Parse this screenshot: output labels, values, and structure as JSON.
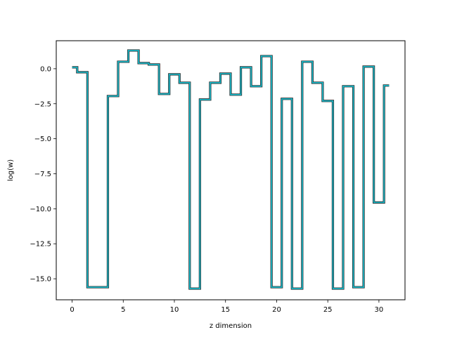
{
  "chart_data": {
    "type": "line",
    "step": "mid",
    "title": "",
    "xlabel": "z dimension",
    "ylabel": "log(w)",
    "xlim": [
      -1.55,
      32.55
    ],
    "ylim": [
      -16.5,
      2.0
    ],
    "xticks": [
      0,
      5,
      10,
      15,
      20,
      25,
      30
    ],
    "xtick_labels": [
      "0",
      "5",
      "10",
      "15",
      "20",
      "25",
      "30"
    ],
    "yticks": [
      0.0,
      -2.5,
      -5.0,
      -7.5,
      -10.0,
      -12.5,
      -15.0
    ],
    "ytick_labels": [
      "0.0",
      "−2.5",
      "−5.0",
      "−7.5",
      "−10.0",
      "−12.5",
      "−15.0"
    ],
    "grid": false,
    "series": [
      {
        "color": "#17becf",
        "outline_color": "#2b2b2b",
        "x": [
          0,
          1,
          2,
          3,
          4,
          5,
          6,
          7,
          8,
          9,
          10,
          11,
          12,
          13,
          14,
          15,
          16,
          17,
          18,
          19,
          20,
          21,
          22,
          23,
          24,
          25,
          26,
          27,
          28,
          29,
          30,
          31
        ],
        "y": [
          0.1,
          -0.25,
          -15.6,
          -15.6,
          -1.95,
          0.5,
          1.3,
          0.4,
          0.3,
          -1.8,
          -0.4,
          -1.0,
          -15.7,
          -2.2,
          -1.0,
          -0.35,
          -1.85,
          0.1,
          -1.25,
          0.9,
          -15.6,
          -2.15,
          -15.7,
          0.5,
          -1.0,
          -2.3,
          -15.7,
          -1.25,
          -15.6,
          0.15,
          -9.55,
          -1.2
        ]
      }
    ]
  }
}
